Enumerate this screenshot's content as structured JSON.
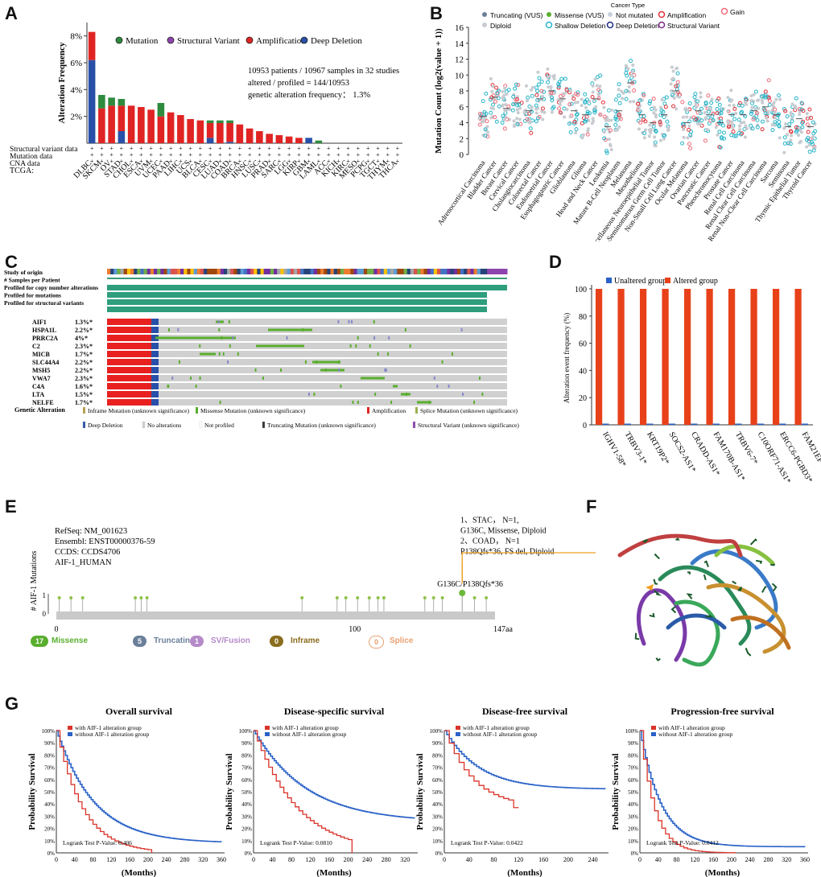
{
  "panels": {
    "A": "A",
    "B": "B",
    "C": "C",
    "D": "D",
    "E": "E",
    "F": "F",
    "G": "G"
  },
  "panelA": {
    "chart_data": {
      "type": "bar",
      "ylabel": "Alteration Frequency",
      "yticks": [
        "2%",
        "4%",
        "6%",
        "8%"
      ],
      "ylim": [
        0,
        9
      ],
      "legend": [
        "Mutation",
        "Structural Variant",
        "Amplification",
        "Deep Deletion"
      ],
      "legend_colors": [
        "#2e8b3e",
        "#8e44ad",
        "#e02424",
        "#2850a8"
      ],
      "info_lines": [
        "10953 patients / 10967 samples in 32 studies",
        "altered / profiled = 144/10953",
        "genetic alteration frequency： 1.3%"
      ],
      "row_labels": [
        "Structural variant data",
        "Mutation data",
        "CNA data"
      ],
      "tcga_label": "TCGA:",
      "categories": [
        "DLBC",
        "SKCM",
        "OV",
        "STAD",
        "CHOL",
        "ESCA",
        "UVM",
        "UCEC",
        "PAAD",
        "LIHC",
        "UCS",
        "BLCA",
        "CESC",
        "LUAD",
        "COAD",
        "BRCA",
        "HNSC",
        "LUSC",
        "PRAD",
        "SARC",
        "LGG",
        "KIRP",
        "GBM",
        "LAML",
        "ACC",
        "KICH",
        "KIRC",
        "MESO",
        "PCPG",
        "TGCT",
        "THYM",
        "THCA"
      ],
      "series": [
        {
          "name": "Deep Deletion",
          "values": [
            6.2,
            0,
            0,
            0.9,
            0,
            0,
            0,
            0,
            0,
            0,
            0,
            0,
            0.4,
            0,
            0.1,
            0,
            0,
            0,
            0,
            0,
            0,
            0,
            0.4,
            0,
            0,
            0,
            0,
            0,
            0,
            0,
            0,
            0
          ]
        },
        {
          "name": "Amplification",
          "values": [
            2.1,
            2.6,
            2.8,
            1.9,
            2.8,
            2.7,
            2.5,
            2.0,
            2.3,
            2.1,
            1.8,
            1.7,
            1.1,
            1.5,
            1.4,
            1.4,
            1.1,
            0.9,
            0.7,
            0.6,
            0.5,
            0.4,
            0,
            0,
            0,
            0,
            0,
            0,
            0,
            0,
            0,
            0
          ]
        },
        {
          "name": "Mutation",
          "values": [
            0,
            1.0,
            0.6,
            0.5,
            0,
            0,
            0,
            1.0,
            0,
            0,
            0,
            0,
            0.2,
            0.2,
            0.2,
            0,
            0,
            0,
            0,
            0,
            0,
            0,
            0,
            0.2,
            0,
            0,
            0,
            0,
            0,
            0,
            0,
            0
          ]
        }
      ]
    }
  },
  "panelB": {
    "chart_data": {
      "type": "scatter",
      "title": "Cancer Type",
      "ylabel": "Mutation Count (log2(value + 1))",
      "ylim": [
        0,
        16
      ],
      "yticks": [
        "0",
        "2",
        "4",
        "6",
        "8",
        "10",
        "12",
        "14",
        "16"
      ],
      "legend": [
        "Truncating (VUS)",
        "Missense (VUS)",
        "Not mutated",
        "Amplification",
        "Gain",
        "Diploid",
        "Shallow Deletion",
        "Deep Deletion",
        "Structural Variant"
      ],
      "categories": [
        "Adrenocortical Carcinoma",
        "Bladder Cancer",
        "Breast Cancer",
        "Cervical Cancer",
        "Cholangiocarcinoma",
        "Colorectal Cancer",
        "Endometrial Cancer",
        "Esophagogastric Cancer",
        "Glioblastoma",
        "Glioma",
        "Head and Neck Cancer",
        "Leukemia",
        "Mature B-Cell Neoplasms",
        "Melanoma",
        "Mesothelioma",
        "Miscellaneous Neuroepithelial Tumor",
        "Non-Seminomatous Germ Cell Tumor",
        "Non-Small Cell Lung Cancer",
        "Ocular Melanoma",
        "Ovarian Cancer",
        "Pancreatic Cancer",
        "Pheochromocytoma",
        "Prostate Cancer",
        "Renal Cell Carcinoma",
        "Renal Clear Cell Carcinoma",
        "Renal Non-Clear Cell Carcinoma",
        "Sarcoma",
        "Seminoma",
        "Thymic Epithelial Tumor",
        "Thyroid Cancer"
      ],
      "medians": [
        4.8,
        7.2,
        5.8,
        6.5,
        5.5,
        7.0,
        8.0,
        7.0,
        5.5,
        5.0,
        7.0,
        3.5,
        5.5,
        9.0,
        5.0,
        4.0,
        5.0,
        8.0,
        4.0,
        5.5,
        5.0,
        4.0,
        5.0,
        5.0,
        5.5,
        6.0,
        5.0,
        3.5,
        4.5,
        3.5
      ]
    }
  },
  "panelC": {
    "header_rows": [
      "Study of origin",
      "# Samples per Patient",
      "Profiled for copy number alterations",
      "Profiled for mutations",
      "Profiled for structural variants"
    ],
    "genes": [
      {
        "name": "AIF1",
        "pct": "1.3%*"
      },
      {
        "name": "HSPA1L",
        "pct": "2.2%*"
      },
      {
        "name": "PRRC2A",
        "pct": "4%*"
      },
      {
        "name": "C2",
        "pct": "2.3%*"
      },
      {
        "name": "MICB",
        "pct": "1.7%*"
      },
      {
        "name": "SLC44A4",
        "pct": "2.2%*"
      },
      {
        "name": "MSH5",
        "pct": "2.2%*"
      },
      {
        "name": "VWA7",
        "pct": "2.3%*"
      },
      {
        "name": "C4A",
        "pct": "1.6%*"
      },
      {
        "name": "LTA",
        "pct": "1.5%*"
      },
      {
        "name": "NELFE",
        "pct": "1.7%*"
      }
    ],
    "legend_title": "Genetic Alteration",
    "legend_row1": [
      "Inframe Mutation (unknown significance)",
      "Missense Mutation (unknown significance)",
      "Amplification",
      "Splice Mutation (unknown significance)"
    ],
    "legend_row2": [
      "Deep Deletion",
      "No alterations",
      "Not profiled",
      "Truncating Mutation (unknown significance)",
      "Structural Variant (unknown significance)"
    ]
  },
  "panelD": {
    "chart_data": {
      "type": "bar",
      "ylabel": "Alteration event frequency (%)",
      "ylim": [
        0,
        100
      ],
      "yticks": [
        "0",
        "20",
        "40",
        "60",
        "80",
        "100"
      ],
      "legend": [
        "Unaltered group",
        "Altered group"
      ],
      "categories": [
        "IGHV1-58*",
        "TRBV3-1*",
        "KRT19P2*",
        "SOCS2-AS1*",
        "CRADD-AS1*",
        "FAM170B-AS1*",
        "TRBV6-7*",
        "C10ORF71-AS1*",
        "ERCC6-PGBD3*",
        "FAM21EP*"
      ],
      "series": [
        {
          "name": "Unaltered group",
          "values": [
            0,
            0,
            0,
            0,
            0,
            0,
            0,
            0,
            0,
            0
          ]
        },
        {
          "name": "Altered group",
          "values": [
            100,
            100,
            100,
            100,
            100,
            100,
            100,
            100,
            100,
            100
          ]
        }
      ]
    }
  },
  "panelE": {
    "refseq": "RefSeq: NM_001623",
    "ensembl": "Ensembl: ENST00000376-59",
    "ccds": "CCDS: CCDS4706",
    "uniprot": "AIF-1_HUMAN",
    "annotation": [
      "1、STAC， N=1,",
      "G136C, Missense, Diploid",
      "2、COAD， N=1",
      "P138Qfs*36, FS del, Diploid"
    ],
    "callout": "G136C/P138Qfs*36",
    "ylabel": "# AIF-1 Mutations",
    "ytick_0": "0",
    "ytick_1": "1",
    "axis": [
      "0",
      "100",
      "147aa"
    ],
    "badges": [
      {
        "count": "17",
        "label": "Missense",
        "color": "#5aae2e"
      },
      {
        "count": "5",
        "label": "Truncating",
        "color": "#6b7f99"
      },
      {
        "count": "1",
        "label": "SV/Fusion",
        "color": "#b58ac9"
      },
      {
        "count": "0",
        "label": "Inframe",
        "color": "#8a6d1e"
      },
      {
        "count": "0",
        "label": "Splice",
        "color": "#e8a070"
      }
    ]
  },
  "panelG": {
    "ylabel": "Probability Survival",
    "xlabel": "(Months)",
    "legend_with": "with AIF-1 alteration group",
    "legend_without": "without AIF-1 alteration group",
    "plots": [
      {
        "title": "Overall survival",
        "pvalue": "Logrank Test P-Value: 0.406",
        "xticks": [
          "0",
          "40",
          "80",
          "120",
          "160",
          "200",
          "240",
          "280",
          "320",
          "360"
        ]
      },
      {
        "title": "Disease-specific survival",
        "pvalue": "Logrank Test P-Value: 0.0810",
        "xticks": [
          "0",
          "40",
          "80",
          "120",
          "160",
          "200",
          "240",
          "280",
          "320"
        ]
      },
      {
        "title": "Disease-free survival",
        "pvalue": "Logrank Test P-Value: 0.0422",
        "xticks": [
          "0",
          "40",
          "80",
          "120",
          "160",
          "200",
          "240"
        ]
      },
      {
        "title": "Progression-free survival",
        "pvalue": "Logrank Test P-Value: 0.0412",
        "xticks": [
          "0",
          "40",
          "80",
          "120",
          "160",
          "200",
          "240",
          "280",
          "320",
          "360"
        ]
      }
    ],
    "yticks": [
      "0%",
      "10%",
      "20%",
      "30%",
      "40%",
      "50%",
      "60%",
      "70%",
      "80%",
      "90%",
      "100%"
    ]
  }
}
